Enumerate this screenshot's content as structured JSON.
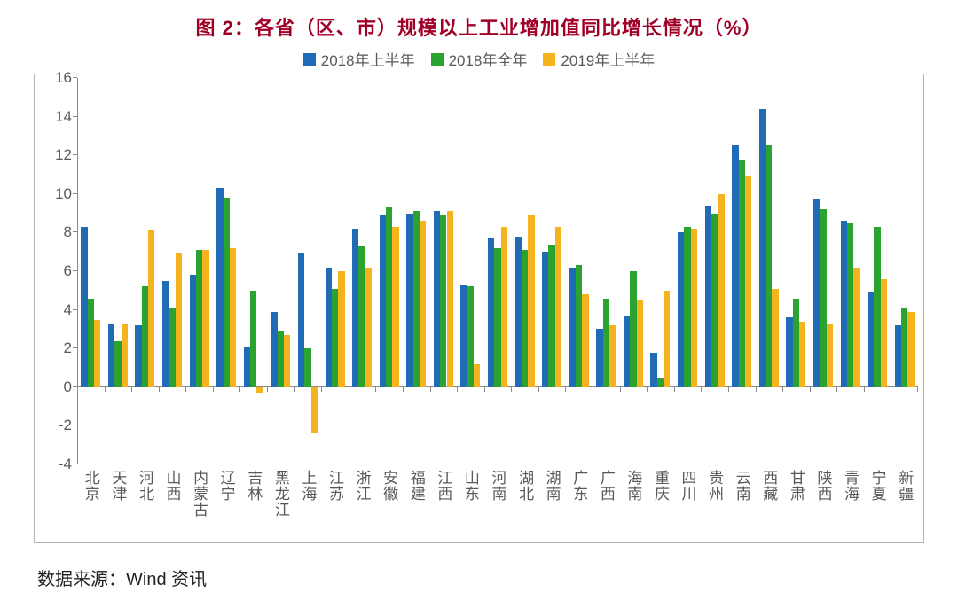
{
  "title": "图 2：各省（区、市）规模以上工业增加值同比增长情况（%）",
  "source_label": "数据来源：Wind 资讯",
  "chart": {
    "type": "bar",
    "legend": [
      {
        "label": "2018年上半年",
        "color": "#1f6bb5"
      },
      {
        "label": "2018年全年",
        "color": "#2aa330"
      },
      {
        "label": "2019年上半年",
        "color": "#f5b31e"
      }
    ],
    "ylim": [
      -4,
      16
    ],
    "ytick_step": 2,
    "axis_color": "#8a8a8a",
    "text_color": "#595959",
    "background_color": "#ffffff",
    "bar_gap": 0.14,
    "group_gap": 0.28,
    "categories": [
      "北京",
      "天津",
      "河北",
      "山西",
      "内蒙古",
      "辽宁",
      "吉林",
      "黑龙江",
      "上海",
      "江苏",
      "浙江",
      "安徽",
      "福建",
      "江西",
      "山东",
      "河南",
      "湖北",
      "湖南",
      "广东",
      "广西",
      "海南",
      "重庆",
      "四川",
      "贵州",
      "云南",
      "西藏",
      "甘肃",
      "陕西",
      "青海",
      "宁夏",
      "新疆"
    ],
    "series": [
      {
        "name": "2018年上半年",
        "color": "#1f6bb5",
        "values": [
          8.3,
          3.3,
          3.2,
          5.5,
          5.8,
          10.3,
          2.1,
          3.9,
          6.9,
          6.2,
          8.2,
          8.9,
          9.0,
          9.1,
          5.3,
          7.7,
          7.8,
          7.0,
          6.2,
          3.0,
          3.7,
          1.8,
          8.0,
          9.4,
          12.5,
          14.4,
          3.6,
          9.7,
          8.6,
          4.9,
          3.2
        ]
      },
      {
        "name": "2018年全年",
        "color": "#2aa330",
        "values": [
          4.6,
          2.4,
          5.2,
          4.1,
          7.1,
          9.8,
          5.0,
          2.9,
          2.0,
          5.1,
          7.3,
          9.3,
          9.1,
          8.9,
          5.2,
          7.2,
          7.1,
          7.4,
          6.3,
          4.6,
          6.0,
          0.5,
          8.3,
          9.0,
          11.8,
          12.5,
          4.6,
          9.2,
          8.5,
          8.3,
          4.1
        ]
      },
      {
        "name": "2019年上半年",
        "color": "#f5b31e",
        "values": [
          3.5,
          3.3,
          8.1,
          6.9,
          7.1,
          7.2,
          -0.3,
          2.7,
          -2.4,
          6.0,
          6.2,
          8.3,
          8.6,
          9.1,
          1.2,
          8.3,
          8.9,
          8.3,
          4.8,
          3.2,
          4.5,
          5.0,
          8.2,
          10.0,
          10.9,
          5.1,
          3.4,
          3.3,
          6.2,
          5.6,
          3.9
        ]
      }
    ]
  }
}
